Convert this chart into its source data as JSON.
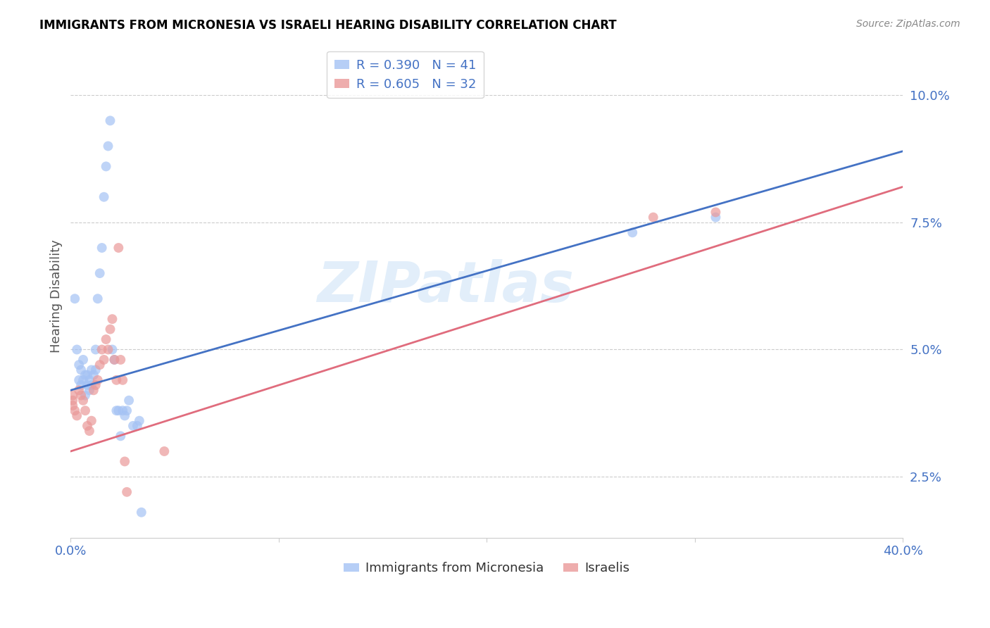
{
  "title": "IMMIGRANTS FROM MICRONESIA VS ISRAELI HEARING DISABILITY CORRELATION CHART",
  "source": "Source: ZipAtlas.com",
  "ylabel_label": "Hearing Disability",
  "xlim": [
    0.0,
    0.4
  ],
  "ylim": [
    0.013,
    0.108
  ],
  "xticks": [
    0.0,
    0.1,
    0.2,
    0.3,
    0.4
  ],
  "xticklabels_visible": [
    "0.0%",
    "",
    "",
    "",
    "40.0%"
  ],
  "yticks": [
    0.025,
    0.05,
    0.075,
    0.1
  ],
  "yticklabels": [
    "2.5%",
    "5.0%",
    "7.5%",
    "10.0%"
  ],
  "blue_color": "#a4c2f4",
  "pink_color": "#ea9999",
  "blue_line_color": "#4472c4",
  "pink_line_color": "#e06c7d",
  "legend_blue_label": "R = 0.390   N = 41",
  "legend_pink_label": "R = 0.605   N = 32",
  "legend_label_blue": "Immigrants from Micronesia",
  "legend_label_pink": "Israelis",
  "watermark": "ZIPatlas",
  "blue_x": [
    0.002,
    0.003,
    0.004,
    0.004,
    0.005,
    0.005,
    0.006,
    0.006,
    0.007,
    0.007,
    0.008,
    0.008,
    0.009,
    0.009,
    0.01,
    0.01,
    0.011,
    0.012,
    0.012,
    0.013,
    0.014,
    0.015,
    0.016,
    0.017,
    0.018,
    0.019,
    0.02,
    0.021,
    0.022,
    0.023,
    0.024,
    0.025,
    0.026,
    0.027,
    0.028,
    0.03,
    0.032,
    0.033,
    0.034,
    0.31,
    0.27
  ],
  "blue_y": [
    0.06,
    0.05,
    0.047,
    0.044,
    0.046,
    0.043,
    0.048,
    0.044,
    0.041,
    0.045,
    0.045,
    0.043,
    0.044,
    0.042,
    0.046,
    0.043,
    0.045,
    0.046,
    0.05,
    0.06,
    0.065,
    0.07,
    0.08,
    0.086,
    0.09,
    0.095,
    0.05,
    0.048,
    0.038,
    0.038,
    0.033,
    0.038,
    0.037,
    0.038,
    0.04,
    0.035,
    0.035,
    0.036,
    0.018,
    0.076,
    0.073
  ],
  "pink_x": [
    0.001,
    0.001,
    0.001,
    0.002,
    0.003,
    0.004,
    0.005,
    0.006,
    0.007,
    0.008,
    0.009,
    0.01,
    0.011,
    0.012,
    0.013,
    0.014,
    0.015,
    0.016,
    0.017,
    0.018,
    0.019,
    0.02,
    0.021,
    0.022,
    0.023,
    0.024,
    0.025,
    0.026,
    0.027,
    0.28,
    0.31,
    0.045
  ],
  "pink_y": [
    0.039,
    0.04,
    0.041,
    0.038,
    0.037,
    0.042,
    0.041,
    0.04,
    0.038,
    0.035,
    0.034,
    0.036,
    0.042,
    0.043,
    0.044,
    0.047,
    0.05,
    0.048,
    0.052,
    0.05,
    0.054,
    0.056,
    0.048,
    0.044,
    0.07,
    0.048,
    0.044,
    0.028,
    0.022,
    0.076,
    0.077,
    0.03
  ],
  "blue_line_x": [
    0.0,
    0.4
  ],
  "blue_line_y": [
    0.042,
    0.089
  ],
  "pink_line_x": [
    0.0,
    0.4
  ],
  "pink_line_y": [
    0.03,
    0.082
  ],
  "background_color": "#ffffff",
  "grid_color": "#cccccc",
  "title_color": "#000000",
  "axis_tick_color": "#4472c4",
  "marker_size": 100
}
